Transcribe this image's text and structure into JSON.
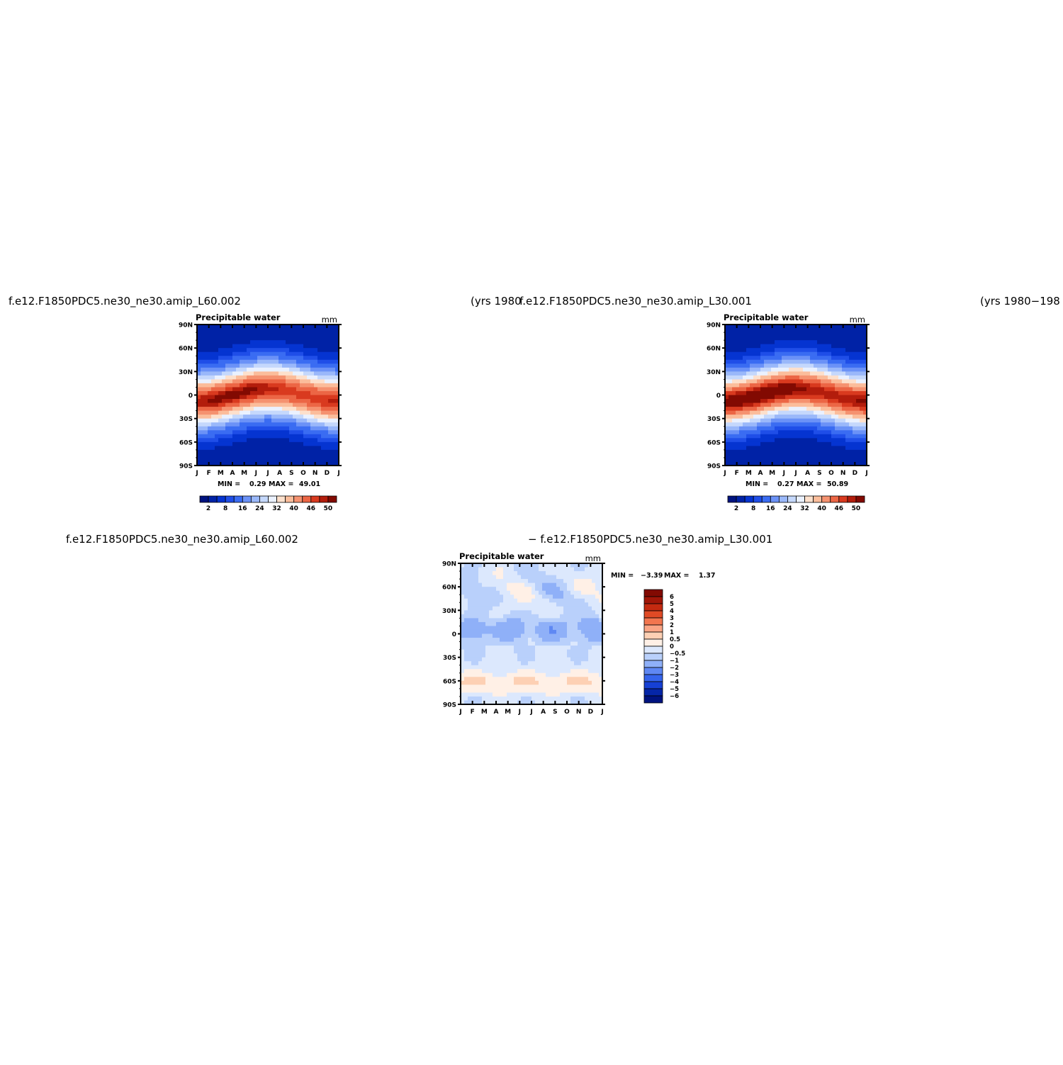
{
  "page": {
    "top_left_title": "f.e12.F1850PDC5.ne30_ne30.amip_L60.002",
    "top_left_years": "(yrs 1980",
    "top_right_title": "f.e12.F1850PDC5.ne30_ne30.amip_L30.001",
    "top_right_years": "(yrs 1980−198",
    "bottom_title_left": "f.e12.F1850PDC5.ne30_ne30.amip_L60.002",
    "bottom_title_right": "− f.e12.F1850PDC5.ne30_ne30.amip_L30.001"
  },
  "chart_data": [
    {
      "type": "heatmap",
      "variable": "Precipitable water",
      "units": "mm",
      "x_ticks": [
        "J",
        "F",
        "M",
        "A",
        "M",
        "J",
        "J",
        "A",
        "S",
        "O",
        "N",
        "D",
        "J"
      ],
      "y_ticks": [
        "90N",
        "60N",
        "30N",
        "0",
        "30S",
        "60S",
        "90S"
      ],
      "ylim": [
        -90,
        90
      ],
      "min_label": "MIN =",
      "min": "0.29",
      "max_label": "MAX =",
      "max": "49.01",
      "colorbar_labels": [
        "2",
        "8",
        "16",
        "24",
        "32",
        "40",
        "46",
        "50"
      ],
      "colors": [
        "#00137f",
        "#0022a6",
        "#0534d1",
        "#1f4ee8",
        "#3a6cf2",
        "#6b92f7",
        "#9ab8fa",
        "#c5d8fc",
        "#eaf1ff",
        "#fde0cc",
        "#fbbd9b",
        "#f59270",
        "#ec6645",
        "#d93a1f",
        "#b31d0c",
        "#820a02"
      ],
      "peak": 49.0
    },
    {
      "type": "heatmap",
      "variable": "Precipitable water",
      "units": "mm",
      "x_ticks": [
        "J",
        "F",
        "M",
        "A",
        "M",
        "J",
        "J",
        "A",
        "S",
        "O",
        "N",
        "D",
        "J"
      ],
      "y_ticks": [
        "90N",
        "60N",
        "30N",
        "0",
        "30S",
        "60S",
        "90S"
      ],
      "ylim": [
        -90,
        90
      ],
      "min_label": "MIN =",
      "min": "0.27",
      "max_label": "MAX =",
      "max": "50.89",
      "colorbar_labels": [
        "2",
        "8",
        "16",
        "24",
        "32",
        "40",
        "46",
        "50"
      ],
      "colors": [
        "#00137f",
        "#0022a6",
        "#0534d1",
        "#1f4ee8",
        "#3a6cf2",
        "#6b92f7",
        "#9ab8fa",
        "#c5d8fc",
        "#eaf1ff",
        "#fde0cc",
        "#fbbd9b",
        "#f59270",
        "#ec6645",
        "#d93a1f",
        "#b31d0c",
        "#820a02"
      ],
      "peak": 50.9
    },
    {
      "type": "heatmap",
      "variable": "Precipitable water",
      "units": "mm",
      "x_ticks": [
        "J",
        "F",
        "M",
        "A",
        "M",
        "J",
        "J",
        "A",
        "S",
        "O",
        "N",
        "D",
        "J"
      ],
      "y_ticks": [
        "90N",
        "60N",
        "30N",
        "0",
        "30S",
        "60S",
        "90S"
      ],
      "ylim": [
        -90,
        90
      ],
      "min_label": "MIN =",
      "min": "−3.39",
      "max_label": "MAX =",
      "max": "1.37",
      "colorbar_labels": [
        "6",
        "5",
        "4",
        "3",
        "2",
        "1",
        "0.5",
        "0",
        "−0.5",
        "−1",
        "−2",
        "−3",
        "−4",
        "−5",
        "−6"
      ],
      "colors": [
        "#820a02",
        "#a11608",
        "#c42a10",
        "#e04a25",
        "#f2764f",
        "#faa585",
        "#fdd0b4",
        "#fff0e6",
        "#dce8fd",
        "#b9d0fb",
        "#8fb0f8",
        "#5f88f3",
        "#3564ec",
        "#1640d4",
        "#0526a8",
        "#00137f"
      ]
    }
  ]
}
